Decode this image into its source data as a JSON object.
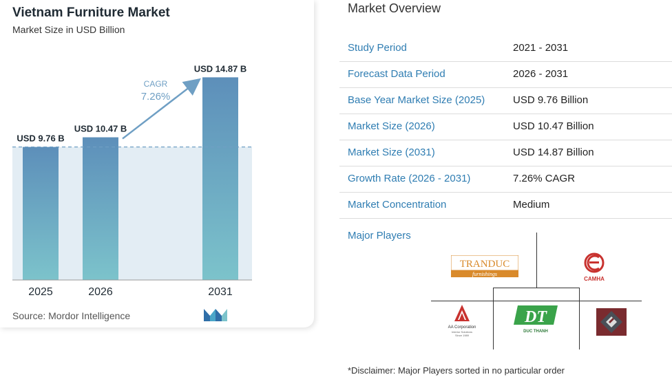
{
  "chart_data": {
    "type": "bar",
    "title": "Vietnam Furniture Market",
    "subtitle": "Market Size in USD Billion",
    "categories": [
      "2025",
      "2026",
      "2031"
    ],
    "values": [
      9.76,
      10.47,
      14.87
    ],
    "data_labels": [
      "USD 9.76 B",
      "USD 10.47 B",
      "USD 14.87 B"
    ],
    "cagr_label": "CAGR",
    "cagr_value": "7.26%",
    "ylim": [
      0,
      16
    ],
    "colors": {
      "bar_top": "#5d8fba",
      "bar_bottom": "#7cc3cb",
      "shade": "#e3edf4",
      "arrow": "#6f9fc4",
      "baseline": "#999999"
    }
  },
  "source": "Source: Mordor Intelligence",
  "overview": {
    "title": "Market Overview",
    "rows": [
      {
        "label": "Study Period",
        "value": "2021 - 2031"
      },
      {
        "label": "Forecast Data Period",
        "value": "2026 - 2031"
      },
      {
        "label": "Base Year Market Size (2025)",
        "value": "USD 9.76 Billion"
      },
      {
        "label": "Market Size (2026)",
        "value": "USD 10.47 Billion"
      },
      {
        "label": "Market Size (2031)",
        "value": "USD 14.87 Billion"
      },
      {
        "label": "Growth Rate (2026 - 2031)",
        "value": "7.26% CAGR"
      },
      {
        "label": "Market Concentration",
        "value": "Medium"
      }
    ]
  },
  "players": {
    "title": "Major Players",
    "logos": {
      "tranduc": {
        "name": "TRANDUC",
        "tagline": "furnishings"
      },
      "camha": {
        "name": "CAMHA"
      },
      "aa": {
        "name": "AA Corporation",
        "tagline": "Interior Solutions",
        "since": "Since 1989"
      },
      "ducthanh": {
        "mark": "DT",
        "name": "DUC THANH"
      }
    }
  },
  "disclaimer": "*Disclaimer: Major Players sorted in no particular order"
}
